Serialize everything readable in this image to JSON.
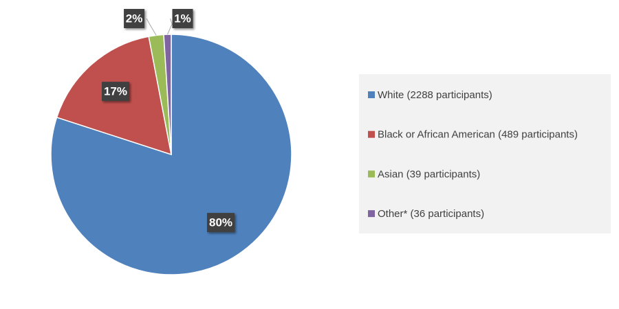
{
  "chart_data": {
    "type": "pie",
    "categories": [
      "White (2288 participants)",
      "Black or African American (489 participants)",
      "Asian (39 participants)",
      "Other* (36 participants)"
    ],
    "values": [
      80,
      17,
      2,
      1
    ],
    "value_labels": [
      "80%",
      "17%",
      "2%",
      "1%"
    ],
    "colors": [
      "#4f81bd",
      "#c0504d",
      "#9bbb59",
      "#8064a2"
    ],
    "legend": "right"
  }
}
